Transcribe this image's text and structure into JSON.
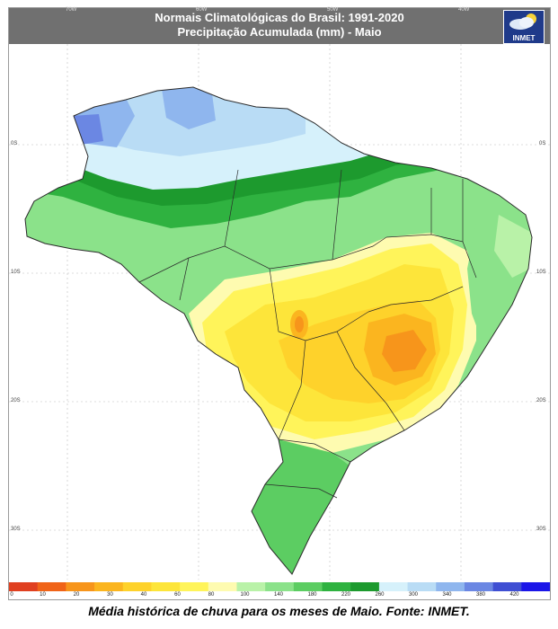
{
  "header": {
    "title_line1": "Normais Climatológicas do Brasil: 1991-2020",
    "title_line2": "Precipitação Acumulada (mm) - Maio"
  },
  "logo": {
    "name": "INMET"
  },
  "longitude_labels": [
    "70W",
    "60W",
    "50W",
    "40W"
  ],
  "latitude_labels": [
    "0S",
    "10S",
    "20S",
    "30S"
  ],
  "legend": {
    "ticks": [
      "0",
      "10",
      "20",
      "30",
      "40",
      "60",
      "80",
      "100",
      "140",
      "180",
      "220",
      "260",
      "300",
      "340",
      "380",
      "420"
    ],
    "colors": [
      "#e04020",
      "#f06418",
      "#f7951b",
      "#fbb51f",
      "#fed22b",
      "#fde53a",
      "#fff45a",
      "#fefbb0",
      "#b9f2a8",
      "#8be28a",
      "#5ccd62",
      "#2fb240",
      "#1d9a2e",
      "#d6f1fb",
      "#b9dcf5",
      "#8fb6ee",
      "#6b87e3",
      "#3f4fd3",
      "#1b16e8"
    ]
  },
  "caption": "Média histórica de chuva para os meses de Maio. Fonte: INMET."
}
